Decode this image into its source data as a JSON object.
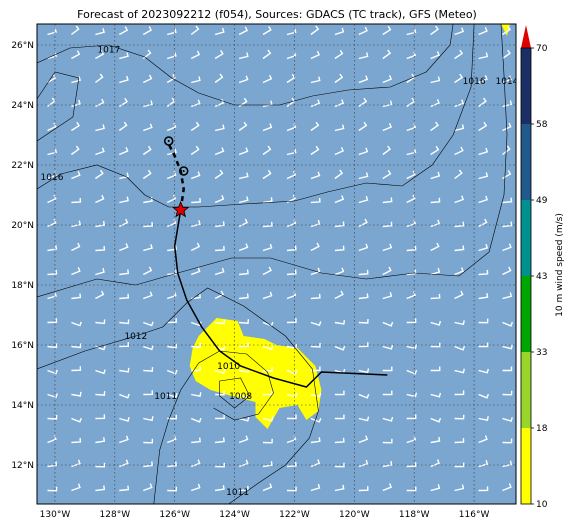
{
  "title": "Forecast of 2023092212 (f054), Sources: GDACS (TC track), GFS (Meteo)",
  "map": {
    "lon_range": [
      -130.6,
      -114.6
    ],
    "lat_range": [
      10.7,
      26.7
    ],
    "lon_ticks": [
      -130,
      -128,
      -126,
      -124,
      -122,
      -120,
      -118,
      -116
    ],
    "lat_ticks": [
      12,
      14,
      16,
      18,
      20,
      22,
      24,
      26
    ],
    "lon_tick_labels": [
      "130°W",
      "128°W",
      "126°W",
      "124°W",
      "122°W",
      "120°W",
      "118°W",
      "116°W"
    ],
    "lat_tick_labels": [
      "12°N",
      "14°N",
      "16°N",
      "18°N",
      "20°N",
      "22°N",
      "24°N",
      "26°N"
    ],
    "grid": "dotted",
    "background_color": "#7aa6cf"
  },
  "isobar_labels": [
    {
      "text": "1017",
      "lon": -128.2,
      "lat": 25.75
    },
    {
      "text": "1016",
      "lon": -130.1,
      "lat": 21.5
    },
    {
      "text": "1016",
      "lon": -116.0,
      "lat": 24.7
    },
    {
      "text": "1014",
      "lon": -114.9,
      "lat": 24.7
    },
    {
      "text": "1012",
      "lon": -127.3,
      "lat": 16.2
    },
    {
      "text": "1011",
      "lon": -126.3,
      "lat": 14.2
    },
    {
      "text": "1010",
      "lon": -124.2,
      "lat": 15.2
    },
    {
      "text": "1008",
      "lon": -123.8,
      "lat": 14.2
    },
    {
      "text": "1011",
      "lon": -123.9,
      "lat": 11.0
    }
  ],
  "track": {
    "observed": [
      [
        -118.9,
        15.0
      ],
      [
        -121.1,
        15.1
      ],
      [
        -121.6,
        14.6
      ],
      [
        -122.7,
        14.9
      ],
      [
        -123.8,
        15.3
      ],
      [
        -124.5,
        15.8
      ],
      [
        -125.1,
        16.6
      ],
      [
        -125.6,
        17.5
      ],
      [
        -125.9,
        18.4
      ],
      [
        -126.0,
        19.3
      ],
      [
        -125.8,
        20.5
      ]
    ],
    "forecast": [
      [
        -125.8,
        20.5
      ],
      [
        -125.7,
        21.2
      ],
      [
        -125.8,
        21.8
      ],
      [
        -126.0,
        22.3
      ],
      [
        -126.2,
        22.7
      ],
      [
        -126.2,
        22.8
      ]
    ],
    "current_position": [
      -125.8,
      20.5
    ],
    "forecast_points": [
      [
        -125.7,
        21.8
      ],
      [
        -126.2,
        22.8
      ]
    ]
  },
  "colorbar": {
    "label": "10 m wind speed (m/s)",
    "ticks": [
      "10",
      "18",
      "33",
      "43",
      "49",
      "58",
      "70"
    ],
    "colors": [
      "#ffff00",
      "#99d62a",
      "#00a600",
      "#00908f",
      "#205a8c",
      "#1c2e66"
    ],
    "extend_color": "#e00000"
  },
  "colors": {
    "ocean": "#7aa6cf",
    "isobar": "#000000",
    "wind_barb": "#ffffff",
    "storm_wind": "#ffff00",
    "track": "#000000",
    "current_marker": "#e00000"
  }
}
